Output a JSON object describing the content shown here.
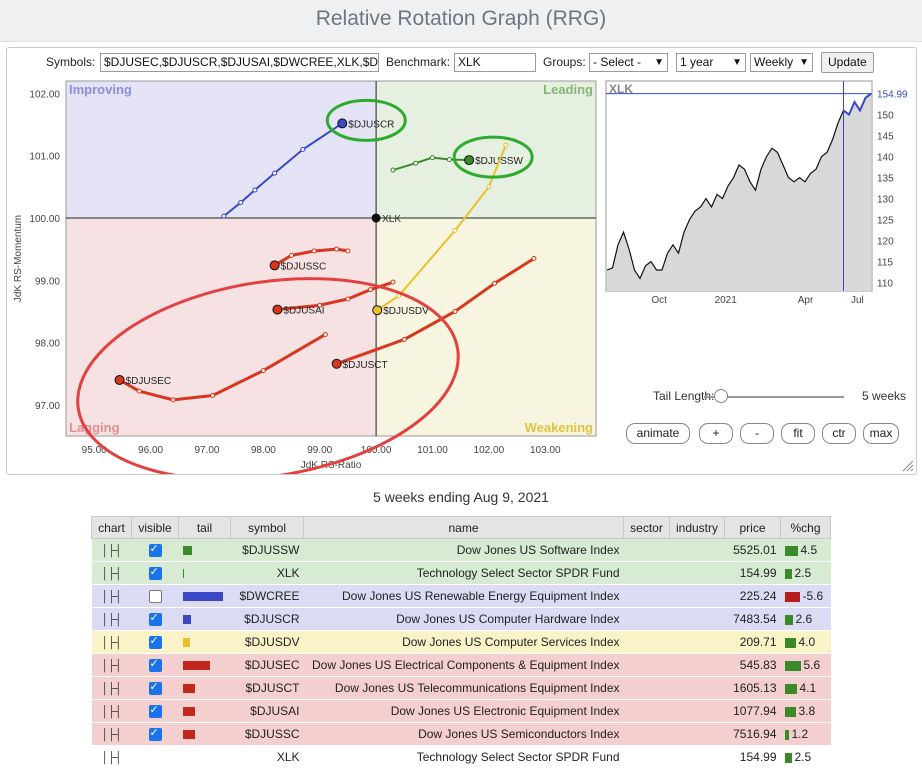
{
  "page_title": "Relative Rotation Graph (RRG)",
  "controls": {
    "symbols_label": "Symbols:",
    "symbols_value": "$DJUSEC,$DJUSCR,$DJUSAI,$DWCREE,XLK,$D",
    "benchmark_label": "Benchmark:",
    "benchmark_value": "XLK",
    "groups_label": "Groups:",
    "groups_value": "- Select -",
    "period_value": "1 year",
    "interval_value": "Weekly",
    "update_label": "Update"
  },
  "rrg": {
    "quadrants": {
      "improving": "Improving",
      "leading": "Leading",
      "lagging": "Lagging",
      "weakening": "Weakening",
      "improving_color": "#e4e4f6",
      "leading_color": "#e6f0e1",
      "lagging_color": "#f6e2e2",
      "weakening_color": "#f7f4e0"
    },
    "xlabel": "JdK RS-Ratio",
    "ylabel": "JdK RS-Momentum",
    "xlim": [
      94.5,
      103.9
    ],
    "ylim": [
      96.5,
      102.2
    ],
    "x_ticks": [
      "95.00",
      "96.00",
      "97.00",
      "98.00",
      "99.00",
      "100.00",
      "101.00",
      "102.00",
      "103.00"
    ],
    "y_ticks": [
      "97.00",
      "98.00",
      "99.00",
      "100.00",
      "101.00",
      "102.00"
    ],
    "center_label": "XLK",
    "series": [
      {
        "name": "$DJUSCR",
        "color": "#3a48c8",
        "points": [
          [
            97.3,
            100.03
          ],
          [
            97.6,
            100.25
          ],
          [
            97.85,
            100.45
          ],
          [
            98.2,
            100.72
          ],
          [
            98.7,
            101.1
          ],
          [
            99.4,
            101.52
          ]
        ]
      },
      {
        "name": "$DJUSSW",
        "color": "#3a8a2a",
        "points": [
          [
            100.3,
            100.77
          ],
          [
            100.7,
            100.88
          ],
          [
            101.0,
            100.97
          ],
          [
            101.3,
            100.94
          ],
          [
            101.65,
            100.93
          ]
        ]
      },
      {
        "name": "$DJUSDV",
        "color": "#e8c12a",
        "points": [
          [
            102.3,
            101.17
          ],
          [
            102.0,
            100.5
          ],
          [
            101.4,
            99.8
          ],
          [
            100.4,
            98.75
          ],
          [
            100.02,
            98.52
          ]
        ]
      },
      {
        "name": "$DJUSSC",
        "color": "#d9361e",
        "points": [
          [
            99.5,
            99.47
          ],
          [
            99.3,
            99.5
          ],
          [
            98.9,
            99.47
          ],
          [
            98.5,
            99.4
          ],
          [
            98.2,
            99.24
          ]
        ]
      },
      {
        "name": "$DJUSAI",
        "color": "#d9361e",
        "points": [
          [
            100.3,
            98.97
          ],
          [
            99.9,
            98.85
          ],
          [
            99.5,
            98.7
          ],
          [
            99.0,
            98.6
          ],
          [
            98.25,
            98.53
          ]
        ]
      },
      {
        "name": "$DJUSCT",
        "color": "#d9361e",
        "points": [
          [
            102.8,
            99.35
          ],
          [
            102.1,
            98.95
          ],
          [
            101.4,
            98.5
          ],
          [
            100.5,
            98.05
          ],
          [
            99.3,
            97.66
          ]
        ]
      },
      {
        "name": "$DJUSEC",
        "color": "#d9361e",
        "points": [
          [
            99.1,
            98.13
          ],
          [
            98.0,
            97.55
          ],
          [
            97.1,
            97.15
          ],
          [
            96.4,
            97.08
          ],
          [
            95.8,
            97.22
          ],
          [
            95.45,
            97.4
          ]
        ]
      }
    ],
    "highlight_green": [
      "$DJUSCR",
      "$DJUSSW"
    ]
  },
  "price_chart": {
    "symbol": "XLK",
    "last_price": "154.99",
    "ylim": [
      108,
      158
    ],
    "y_ticks": [
      "110",
      "115",
      "120",
      "125",
      "130",
      "135",
      "140",
      "145",
      "150",
      "154.99"
    ],
    "x_labels": [
      "Oct",
      "2021",
      "Apr",
      "Jul"
    ],
    "x_label_positions": [
      0.2,
      0.45,
      0.75,
      0.945
    ],
    "values": [
      113,
      113.5,
      119,
      122,
      118,
      113,
      111,
      114,
      115,
      113,
      113,
      117,
      119,
      117,
      122,
      125,
      127,
      128,
      130,
      128,
      131,
      130,
      133,
      135,
      138,
      137,
      134,
      132,
      137,
      140,
      142,
      141,
      138,
      135,
      134,
      135,
      134,
      136,
      137,
      140,
      141,
      144,
      148,
      151,
      150,
      153,
      151,
      154,
      154.99
    ]
  },
  "tail": {
    "label": "Tail Length:",
    "value": "5 weeks",
    "position": 0.1
  },
  "buttons": [
    "animate",
    "+",
    "-",
    "fit",
    "ctr",
    "max"
  ],
  "caption": "5 weeks ending Aug 9, 2021",
  "table": {
    "headers": [
      "chart",
      "visible",
      "tail",
      "symbol",
      "name",
      "sector",
      "industry",
      "price",
      "%chg"
    ],
    "rows": [
      {
        "visible": true,
        "tail_color": "#3a8a2a",
        "tail_w": 9,
        "symbol": "$DJUSSW",
        "name": "Dow Jones US Software Index",
        "price": "5525.01",
        "chg": "4.5",
        "chg_color": "#3a8a2a",
        "chg_w": 13,
        "row_color": "#d6ebd2"
      },
      {
        "visible": true,
        "tail_color": "#3a8a2a",
        "tail_w": 1,
        "symbol": "XLK",
        "name": "Technology Select Sector SPDR Fund",
        "price": "154.99",
        "chg": "2.5",
        "chg_color": "#3a8a2a",
        "chg_w": 7,
        "row_color": "#d6ebd2"
      },
      {
        "visible": false,
        "tail_color": "#3a48c8",
        "tail_w": 40,
        "symbol": "$DWCREE",
        "name": "Dow Jones US Renewable Energy Equipment Index",
        "price": "225.24",
        "chg": "-5.6",
        "chg_color": "#b71c1c",
        "chg_w": 15,
        "row_color": "#dbdcf4"
      },
      {
        "visible": true,
        "tail_color": "#3a48c8",
        "tail_w": 8,
        "symbol": "$DJUSCR",
        "name": "Dow Jones US Computer Hardware Index",
        "price": "7483.54",
        "chg": "2.6",
        "chg_color": "#3a8a2a",
        "chg_w": 8,
        "row_color": "#dbdcf4"
      },
      {
        "visible": true,
        "tail_color": "#e8c12a",
        "tail_w": 7,
        "symbol": "$DJUSDV",
        "name": "Dow Jones US Computer Services Index",
        "price": "209.71",
        "chg": "4.0",
        "chg_color": "#3a8a2a",
        "chg_w": 11,
        "row_color": "#faf3c8"
      },
      {
        "visible": true,
        "tail_color": "#c1271b",
        "tail_w": 27,
        "symbol": "$DJUSEC",
        "name": "Dow Jones US Electrical Components & Equipment Index",
        "price": "545.83",
        "chg": "5.6",
        "chg_color": "#3a8a2a",
        "chg_w": 16,
        "row_color": "#f4cfcf"
      },
      {
        "visible": true,
        "tail_color": "#c1271b",
        "tail_w": 12,
        "symbol": "$DJUSCT",
        "name": "Dow Jones US Telecommunications Equipment Index",
        "price": "1605.13",
        "chg": "4.1",
        "chg_color": "#3a8a2a",
        "chg_w": 12,
        "row_color": "#f4cfcf"
      },
      {
        "visible": true,
        "tail_color": "#c1271b",
        "tail_w": 12,
        "symbol": "$DJUSAI",
        "name": "Dow Jones US Electronic Equipment Index",
        "price": "1077.94",
        "chg": "3.8",
        "chg_color": "#3a8a2a",
        "chg_w": 11,
        "row_color": "#f4cfcf"
      },
      {
        "visible": true,
        "tail_color": "#c1271b",
        "tail_w": 12,
        "symbol": "$DJUSSC",
        "name": "Dow Jones US Semiconductors Index",
        "price": "7516.94",
        "chg": "1.2",
        "chg_color": "#3a8a2a",
        "chg_w": 4,
        "row_color": "#f4cfcf"
      },
      {
        "visible": null,
        "tail_color": "",
        "tail_w": 0,
        "symbol": "XLK",
        "name": "Technology Select Sector SPDR Fund",
        "price": "154.99",
        "chg": "2.5",
        "chg_color": "#3a8a2a",
        "chg_w": 7,
        "row_color": "#ffffff"
      }
    ]
  }
}
